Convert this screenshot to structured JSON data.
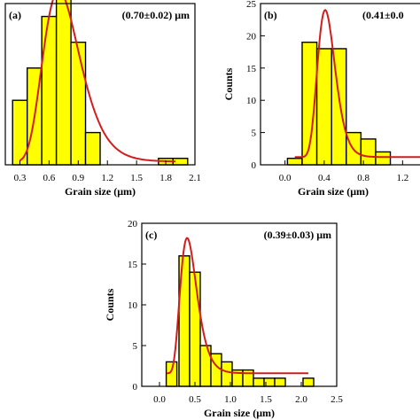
{
  "chart_data": [
    {
      "panel": "(a)",
      "type": "bar",
      "annotation": "(0.70±0.02) μm",
      "xlabel": "Grain size (μm)",
      "ylabel": "",
      "xlim": [
        0.15,
        2.1
      ],
      "ylim": [
        0,
        25
      ],
      "xticks": [
        0.3,
        0.6,
        0.9,
        1.2,
        1.5,
        1.8,
        2.1
      ],
      "xtick_labels": [
        "0.3",
        "0.6",
        "0.9",
        "1.2",
        "1.5",
        "1.8",
        "2.1"
      ],
      "yticks": [],
      "ytick_labels": [],
      "bin_width": 0.15,
      "x": [
        0.3,
        0.45,
        0.6,
        0.75,
        0.9,
        1.05,
        1.2,
        1.35,
        1.5,
        1.65,
        1.8,
        1.95
      ],
      "values": [
        10,
        15,
        23,
        27,
        19,
        5,
        0,
        0,
        0,
        0,
        1,
        1
      ],
      "fit": {
        "type": "lognormal",
        "peak_x": 0.7,
        "peak_y": 27,
        "sigma": 0.27,
        "baseline": 0.5,
        "x_start": 0.3,
        "x_end": 1.9
      }
    },
    {
      "panel": "(b)",
      "type": "bar",
      "annotation": "(0.41±0.0",
      "xlabel": "Grain size (μm)",
      "ylabel": "Counts",
      "xlim": [
        -0.25,
        1.45
      ],
      "ylim": [
        0,
        25
      ],
      "xticks": [
        0.0,
        0.4,
        0.8,
        1.2
      ],
      "xtick_labels": [
        "0.0",
        "0.4",
        "0.8",
        "1.2"
      ],
      "yticks": [
        0,
        5,
        10,
        15,
        20,
        25
      ],
      "ytick_labels": [
        "0",
        "5",
        "10",
        "15",
        "20",
        "25"
      ],
      "bin_width": 0.15,
      "x": [
        0.1,
        0.25,
        0.4,
        0.55,
        0.7,
        0.85,
        1.0
      ],
      "values": [
        1,
        19,
        18,
        18,
        5,
        4,
        2
      ],
      "fit": {
        "type": "lognormal",
        "peak_x": 0.41,
        "peak_y": 24,
        "sigma": 0.22,
        "baseline": 1.2,
        "x_start": 0.1,
        "x_end": 1.45
      }
    },
    {
      "panel": "(c)",
      "type": "bar",
      "annotation": "(0.39±0.03) μm",
      "xlabel": "Grain size (μm)",
      "ylabel": "Counts",
      "xlim": [
        -0.25,
        2.5
      ],
      "ylim": [
        0,
        20
      ],
      "xticks": [
        0.0,
        0.5,
        1.0,
        1.5,
        2.0,
        2.5
      ],
      "xtick_labels": [
        "0.0",
        "0.5",
        "1.0",
        "1.5",
        "2.0",
        "2.5"
      ],
      "yticks": [
        0,
        5,
        10,
        15,
        20
      ],
      "ytick_labels": [
        "0",
        "5",
        "10",
        "15",
        "20"
      ],
      "bin_width": 0.15,
      "x": [
        0.17,
        0.35,
        0.5,
        0.65,
        0.8,
        0.95,
        1.1,
        1.25,
        1.4,
        1.55,
        1.7,
        2.1
      ],
      "values": [
        3,
        16,
        14,
        5,
        4,
        3,
        2,
        2,
        1,
        1,
        1,
        1
      ],
      "fit": {
        "type": "lognormal",
        "peak_x": 0.39,
        "peak_y": 18.2,
        "sigma": 0.3,
        "baseline": 1.6,
        "x_start": 0.1,
        "x_end": 2.1
      }
    }
  ]
}
